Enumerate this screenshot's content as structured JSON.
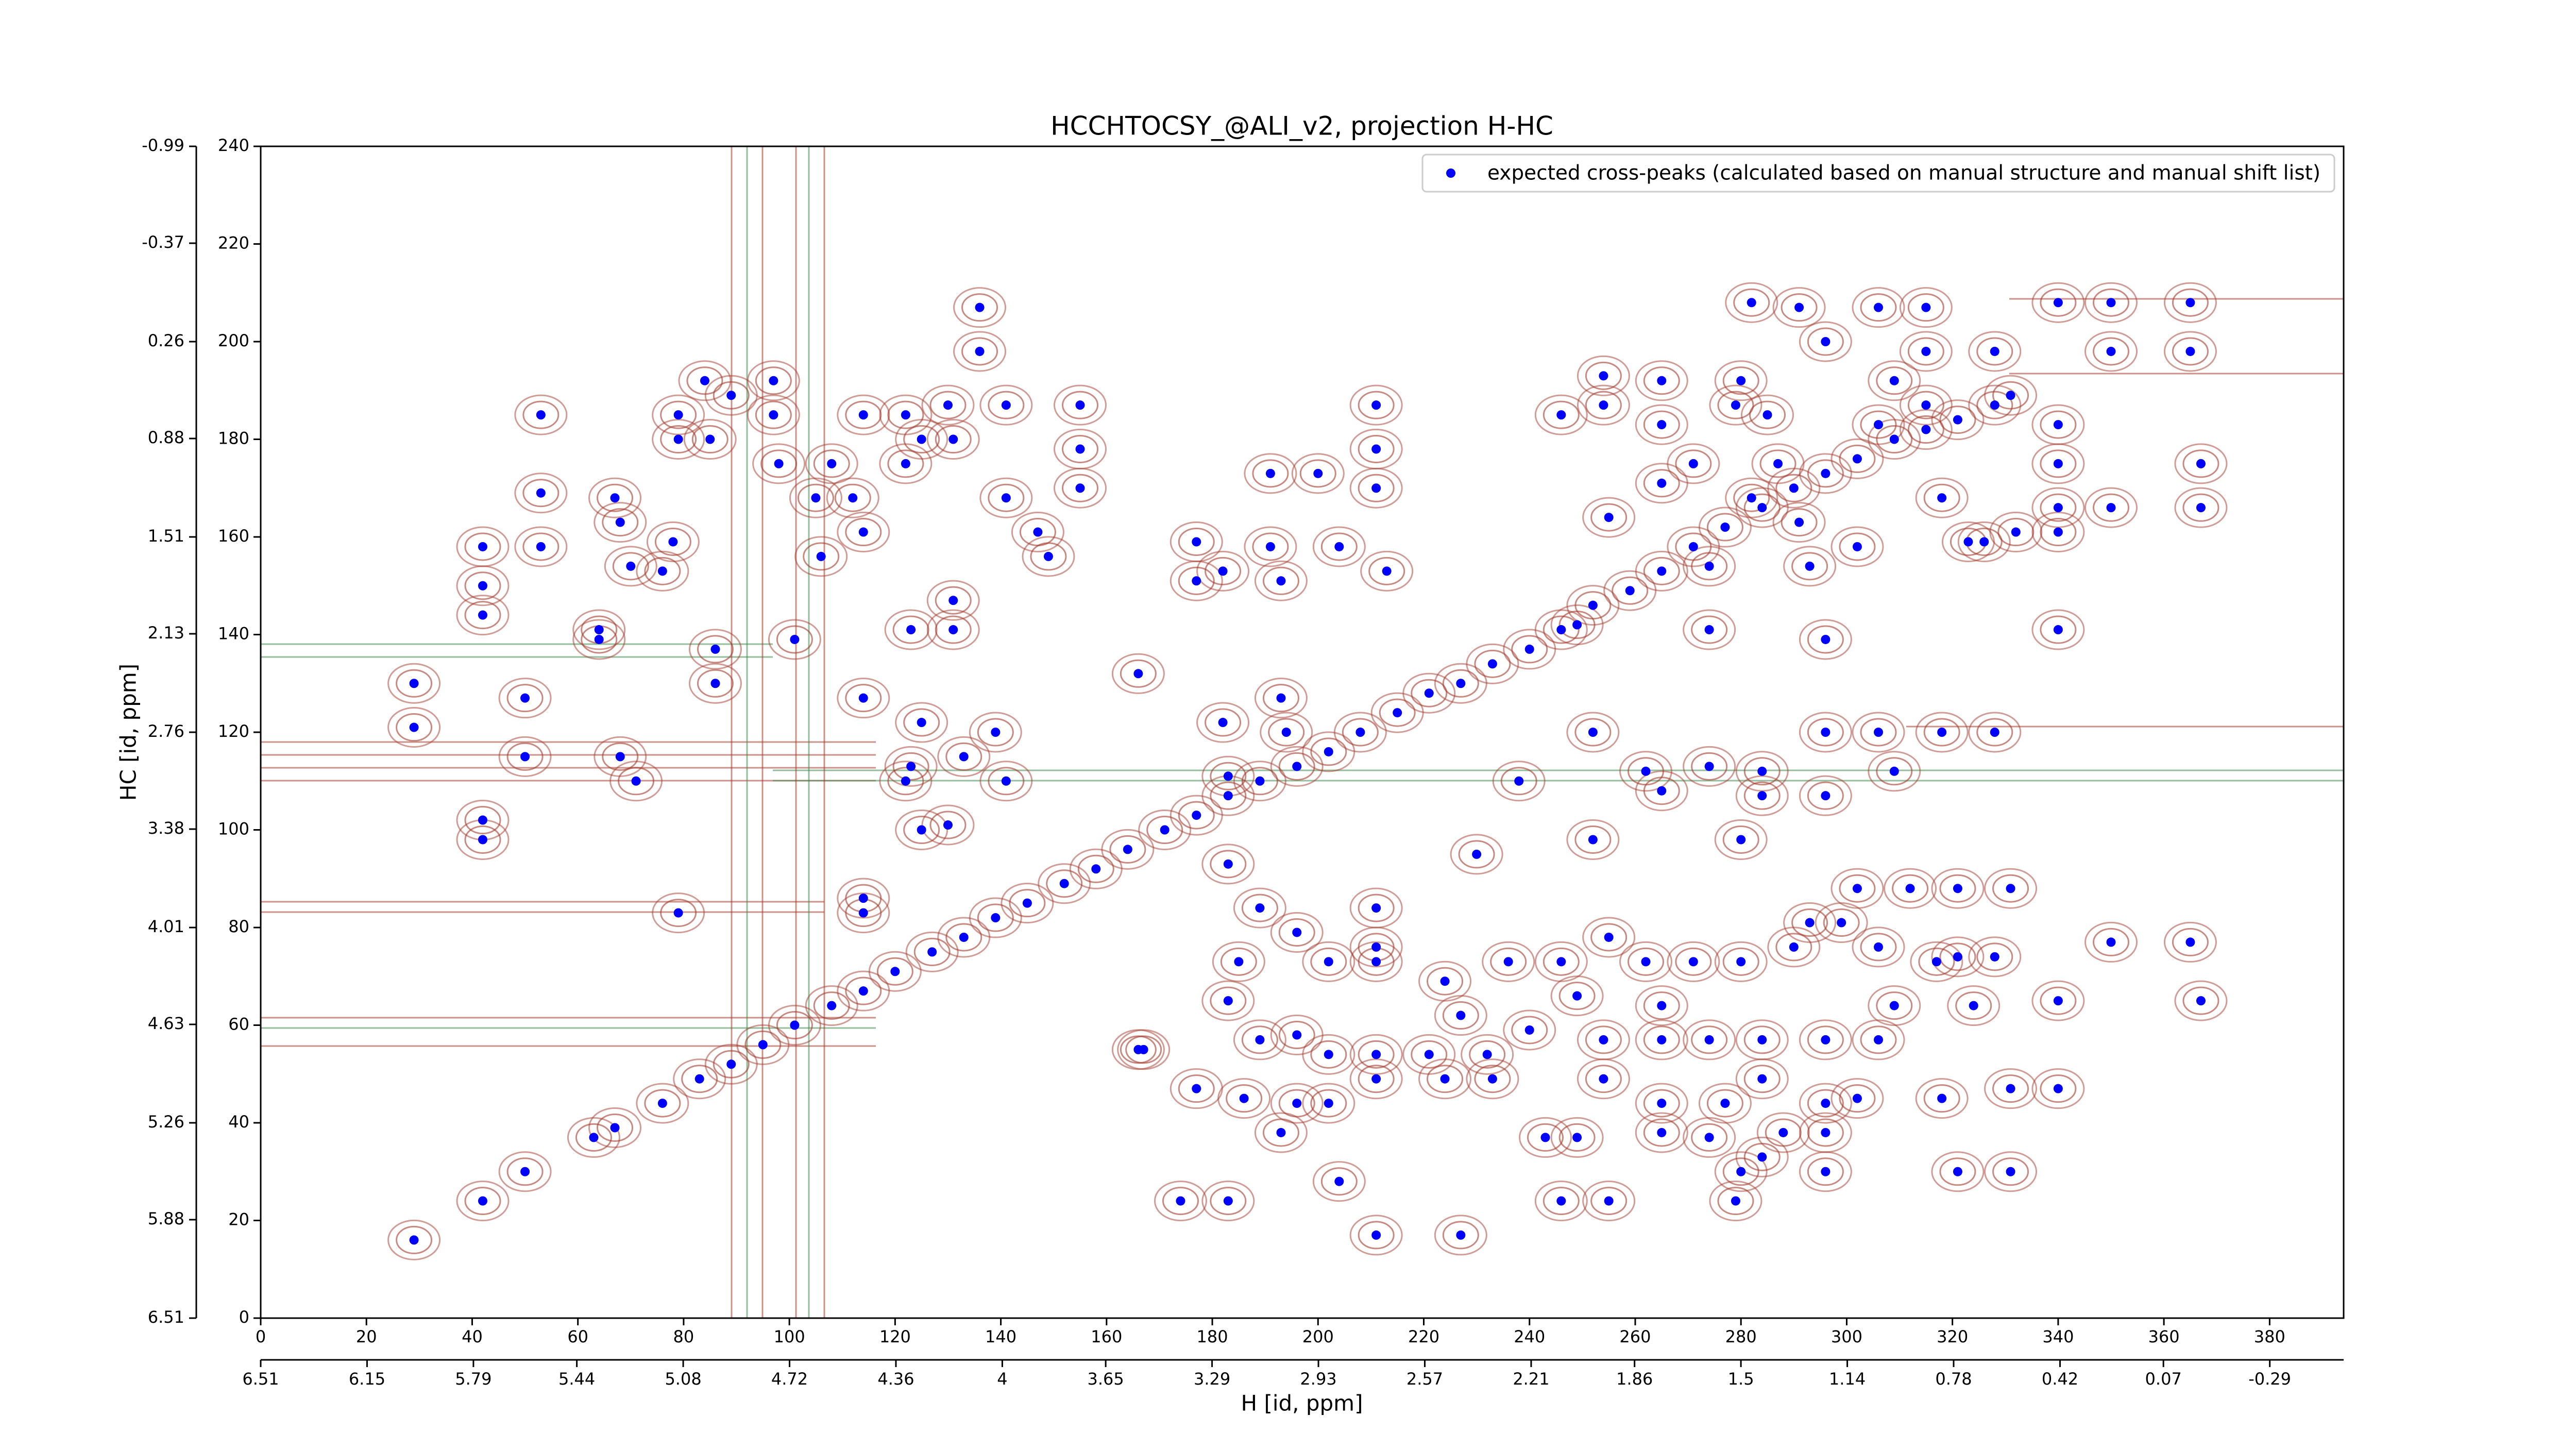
{
  "chart_data": {
    "type": "scatter",
    "title": "HCCHTOCSY_@ALI_v2, projection H-HC",
    "xlabel": "H [id, ppm]",
    "ylabel": "HC [id, ppm]",
    "xlim": [
      0,
      394
    ],
    "ylim": [
      0,
      240
    ],
    "xticks": [
      0,
      20,
      40,
      60,
      80,
      100,
      120,
      140,
      160,
      180,
      200,
      220,
      240,
      260,
      280,
      300,
      320,
      340,
      360,
      380
    ],
    "yticks": [
      0,
      20,
      40,
      60,
      80,
      100,
      120,
      140,
      160,
      180,
      200,
      220,
      240
    ],
    "x2lim": [
      6.51,
      -0.54
    ],
    "x2ticks": [
      6.51,
      6.15,
      5.79,
      5.44,
      5.08,
      4.72,
      4.36,
      4.0,
      3.65,
      3.29,
      2.93,
      2.57,
      2.21,
      1.86,
      1.5,
      1.14,
      0.78,
      0.42,
      0.07,
      -0.29
    ],
    "y2lim": [
      6.51,
      -0.99
    ],
    "y2ticks": [
      6.51,
      5.88,
      5.26,
      4.63,
      4.01,
      3.38,
      2.76,
      2.13,
      1.51,
      0.88,
      0.26,
      -0.37,
      -0.99
    ],
    "legend": "upper right",
    "x": [
      29,
      42,
      50,
      63,
      67,
      76,
      83,
      89,
      95,
      101,
      108,
      114,
      120,
      127,
      133,
      139,
      145,
      152,
      158,
      164,
      171,
      177,
      183,
      189,
      196,
      202,
      208,
      215,
      221,
      227,
      233,
      240,
      246,
      252,
      259,
      265,
      271,
      277,
      284,
      290,
      296,
      302,
      309,
      315,
      321,
      328,
      331,
      29,
      29,
      42,
      42,
      42,
      42,
      42,
      53,
      53,
      53,
      50,
      50,
      64,
      64,
      67,
      68,
      70,
      68,
      71,
      76,
      78,
      79,
      79,
      79,
      84,
      85,
      86,
      86,
      89,
      97,
      97,
      98,
      101,
      105,
      106,
      108,
      112,
      114,
      114,
      114,
      114,
      114,
      122,
      122,
      125,
      130,
      131,
      131,
      131,
      125,
      122,
      123,
      136,
      136,
      141,
      141,
      147,
      149,
      155,
      155,
      155,
      139,
      133,
      141,
      123,
      130,
      125,
      166,
      177,
      177,
      182,
      182,
      191,
      191,
      193,
      193,
      194,
      200,
      204,
      211,
      211,
      211,
      213,
      183,
      183,
      189,
      196,
      211,
      211,
      230,
      238,
      246,
      249,
      254,
      254,
      255,
      265,
      265,
      265,
      271,
      274,
      274,
      279,
      280,
      282,
      285,
      287,
      291,
      293,
      296,
      302,
      306,
      309,
      315,
      318,
      323,
      326,
      332,
      340,
      340,
      340,
      340,
      282,
      291,
      296,
      306,
      315,
      315,
      328,
      340,
      350,
      350,
      365,
      365,
      367,
      367,
      350,
      340,
      252,
      262,
      274,
      284,
      296,
      306,
      318,
      328,
      284,
      296,
      309,
      265,
      252,
      280,
      302,
      312,
      321,
      331,
      293,
      299,
      306,
      317,
      321,
      328,
      350,
      365,
      367,
      340,
      324,
      309,
      306,
      296,
      284,
      274,
      265,
      254,
      240,
      232,
      221,
      211,
      202,
      196,
      189,
      183,
      185,
      202,
      211,
      224,
      227,
      236,
      246,
      255,
      262,
      271,
      280,
      290,
      265,
      249,
      233,
      224,
      211,
      202,
      196,
      193,
      186,
      254,
      265,
      277,
      284,
      296,
      318,
      331,
      340,
      302,
      243,
      249,
      265,
      274,
      288,
      296,
      284,
      296,
      321,
      331,
      280,
      246,
      255,
      279,
      174,
      183,
      204,
      211,
      227,
      166,
      177,
      167
    ],
    "series": [
      {
        "name": "expected cross-peaks (calculated based on manual structure and manual shift list)",
        "color": "#0000ff",
        "values": [
          16,
          24,
          30,
          37,
          39,
          44,
          49,
          52,
          56,
          60,
          64,
          67,
          71,
          75,
          78,
          82,
          85,
          89,
          92,
          96,
          100,
          103,
          107,
          110,
          113,
          116,
          120,
          124,
          128,
          130,
          134,
          137,
          141,
          146,
          149,
          153,
          158,
          162,
          166,
          170,
          173,
          176,
          180,
          182,
          184,
          187,
          189,
          130,
          121,
          158,
          150,
          144,
          102,
          98,
          185,
          169,
          158,
          127,
          115,
          141,
          139,
          168,
          163,
          154,
          115,
          110,
          153,
          159,
          185,
          180,
          83,
          192,
          180,
          137,
          130,
          189,
          192,
          185,
          175,
          139,
          168,
          156,
          175,
          168,
          161,
          185,
          127,
          86,
          83,
          185,
          175,
          180,
          187,
          180,
          147,
          141,
          122,
          110,
          141,
          207,
          198,
          187,
          168,
          161,
          156,
          187,
          178,
          170,
          120,
          115,
          110,
          113,
          101,
          100,
          132,
          159,
          151,
          153,
          122,
          173,
          158,
          151,
          127,
          120,
          173,
          158,
          187,
          178,
          170,
          153,
          111,
          93,
          84,
          79,
          84,
          76,
          95,
          110,
          185,
          142,
          193,
          187,
          164,
          192,
          183,
          171,
          175,
          154,
          141,
          187,
          192,
          168,
          185,
          175,
          163,
          154,
          139,
          158,
          183,
          192,
          187,
          168,
          159,
          159,
          161,
          183,
          175,
          161,
          141,
          208,
          207,
          200,
          207,
          207,
          198,
          198,
          208,
          208,
          198,
          208,
          198,
          175,
          166,
          166,
          166,
          120,
          112,
          113,
          112,
          120,
          120,
          120,
          120,
          107,
          107,
          112,
          108,
          98,
          98,
          88,
          88,
          88,
          88,
          81,
          81,
          76,
          73,
          74,
          74,
          77,
          77,
          65,
          65,
          64,
          64,
          57,
          57,
          57,
          57,
          57,
          57,
          59,
          54,
          54,
          54,
          54,
          58,
          57,
          65,
          73,
          73,
          73,
          69,
          62,
          73,
          73,
          78,
          73,
          73,
          73,
          76,
          64,
          66,
          49,
          49,
          49,
          44,
          44,
          38,
          45,
          49,
          44,
          44,
          49,
          44,
          45,
          47,
          47,
          45,
          37,
          37,
          38,
          37,
          38,
          38,
          33,
          30,
          30,
          30,
          30,
          24,
          24,
          24,
          24,
          24,
          28,
          17,
          17,
          55,
          47,
          55
        ]
      }
    ]
  }
}
